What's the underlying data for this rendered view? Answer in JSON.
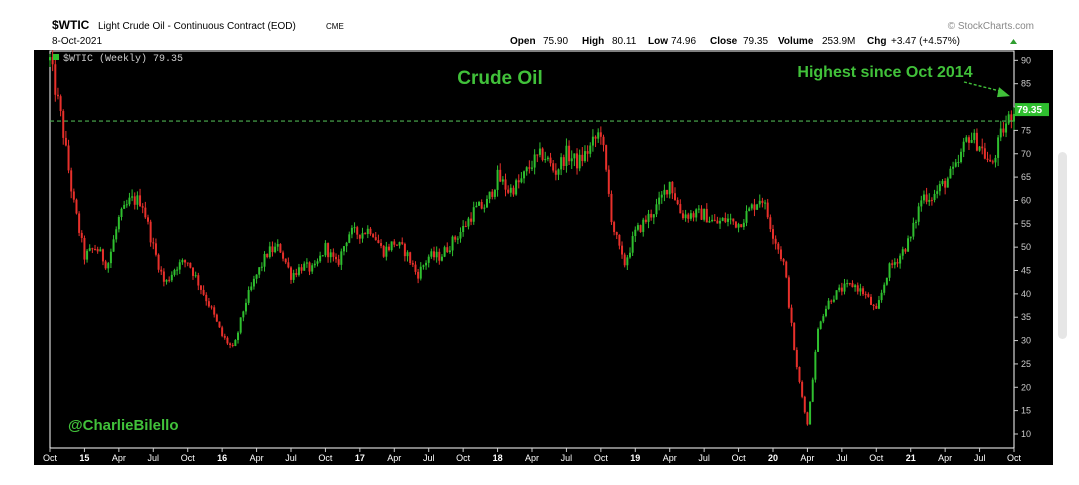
{
  "header": {
    "symbol": "$WTIC",
    "description": "Light Crude Oil - Continuous Contract (EOD)",
    "exchange": "CME",
    "date": "8-Oct-2021",
    "brand": "© StockCharts.com",
    "quote": {
      "open_label": "Open",
      "open": "75.90",
      "high_label": "High",
      "high": "80.11",
      "low_label": "Low",
      "low": "74.96",
      "close_label": "Close",
      "close": "79.35",
      "volume_label": "Volume",
      "volume": "253.9M",
      "chg_label": "Chg",
      "chg": "+3.47 (+4.57%)"
    }
  },
  "legend_text": "$WTIC (Weekly) 79.35",
  "last_price_tag": "79.35",
  "attribution": "@CharlieBilello",
  "scrollbar": {
    "visible": true
  },
  "chart_data": {
    "type": "candlestick",
    "title": "Crude Oil",
    "annotation": "Highest since Oct 2014",
    "reference_line": 77,
    "colors": {
      "up": "#2fbf2f",
      "down": "#e8302b",
      "background": "#000000",
      "reference": "#4caf50",
      "title": "#41c13a"
    },
    "y_ticks": [
      10,
      15,
      20,
      25,
      30,
      35,
      40,
      45,
      50,
      55,
      60,
      65,
      70,
      75,
      80,
      85,
      90
    ],
    "ylim": [
      7,
      92
    ],
    "x_tick_labels": [
      "Oct",
      "15",
      "Apr",
      "Jul",
      "Oct",
      "16",
      "Apr",
      "Jul",
      "Oct",
      "17",
      "Apr",
      "Jul",
      "Oct",
      "18",
      "Apr",
      "Jul",
      "Oct",
      "19",
      "Apr",
      "Jul",
      "Oct",
      "20",
      "Apr",
      "Jul",
      "Oct",
      "21",
      "Apr",
      "Jul",
      "Oct"
    ],
    "x_start": "2014-10",
    "x_end": "2021-10",
    "close_path": [
      [
        "2014-10",
        90
      ],
      [
        "2014-11",
        77
      ],
      [
        "2014-12",
        60
      ],
      [
        "2015-01",
        48
      ],
      [
        "2015-02",
        50
      ],
      [
        "2015-03",
        46
      ],
      [
        "2015-04",
        56
      ],
      [
        "2015-05",
        60
      ],
      [
        "2015-06",
        60
      ],
      [
        "2015-07",
        50
      ],
      [
        "2015-08",
        42
      ],
      [
        "2015-09",
        46
      ],
      [
        "2015-10",
        47
      ],
      [
        "2015-11",
        42
      ],
      [
        "2015-12",
        37
      ],
      [
        "2016-01",
        31
      ],
      [
        "2016-02",
        28
      ],
      [
        "2016-03",
        38
      ],
      [
        "2016-04",
        44
      ],
      [
        "2016-05",
        49
      ],
      [
        "2016-06",
        50
      ],
      [
        "2016-07",
        44
      ],
      [
        "2016-08",
        46
      ],
      [
        "2016-09",
        45
      ],
      [
        "2016-10",
        50
      ],
      [
        "2016-11",
        46
      ],
      [
        "2016-12",
        53
      ],
      [
        "2017-01",
        53
      ],
      [
        "2017-02",
        54
      ],
      [
        "2017-03",
        49
      ],
      [
        "2017-04",
        51
      ],
      [
        "2017-05",
        49
      ],
      [
        "2017-06",
        44
      ],
      [
        "2017-07",
        48
      ],
      [
        "2017-08",
        48
      ],
      [
        "2017-09",
        51
      ],
      [
        "2017-10",
        54
      ],
      [
        "2017-11",
        58
      ],
      [
        "2017-12",
        59
      ],
      [
        "2018-01",
        65
      ],
      [
        "2018-02",
        62
      ],
      [
        "2018-03",
        64
      ],
      [
        "2018-04",
        68
      ],
      [
        "2018-05",
        70
      ],
      [
        "2018-06",
        66
      ],
      [
        "2018-07",
        70
      ],
      [
        "2018-08",
        68
      ],
      [
        "2018-09",
        71
      ],
      [
        "2018-10",
        75
      ],
      [
        "2018-11",
        55
      ],
      [
        "2018-12",
        46
      ],
      [
        "2019-01",
        53
      ],
      [
        "2019-02",
        56
      ],
      [
        "2019-03",
        59
      ],
      [
        "2019-04",
        64
      ],
      [
        "2019-05",
        57
      ],
      [
        "2019-06",
        57
      ],
      [
        "2019-07",
        57
      ],
      [
        "2019-08",
        55
      ],
      [
        "2019-09",
        56
      ],
      [
        "2019-10",
        55
      ],
      [
        "2019-11",
        58
      ],
      [
        "2019-12",
        61
      ],
      [
        "2020-01",
        53
      ],
      [
        "2020-02",
        46
      ],
      [
        "2020-03",
        25
      ],
      [
        "2020-04",
        12
      ],
      [
        "2020-05",
        34
      ],
      [
        "2020-06",
        39
      ],
      [
        "2020-07",
        41
      ],
      [
        "2020-08",
        42
      ],
      [
        "2020-09",
        40
      ],
      [
        "2020-10",
        36
      ],
      [
        "2020-11",
        45
      ],
      [
        "2020-12",
        48
      ],
      [
        "2021-01",
        52
      ],
      [
        "2021-02",
        61
      ],
      [
        "2021-03",
        61
      ],
      [
        "2021-04",
        64
      ],
      [
        "2021-05",
        67
      ],
      [
        "2021-06",
        74
      ],
      [
        "2021-07",
        72
      ],
      [
        "2021-08",
        67
      ],
      [
        "2021-09",
        75
      ],
      [
        "2021-10",
        79.35
      ]
    ]
  }
}
